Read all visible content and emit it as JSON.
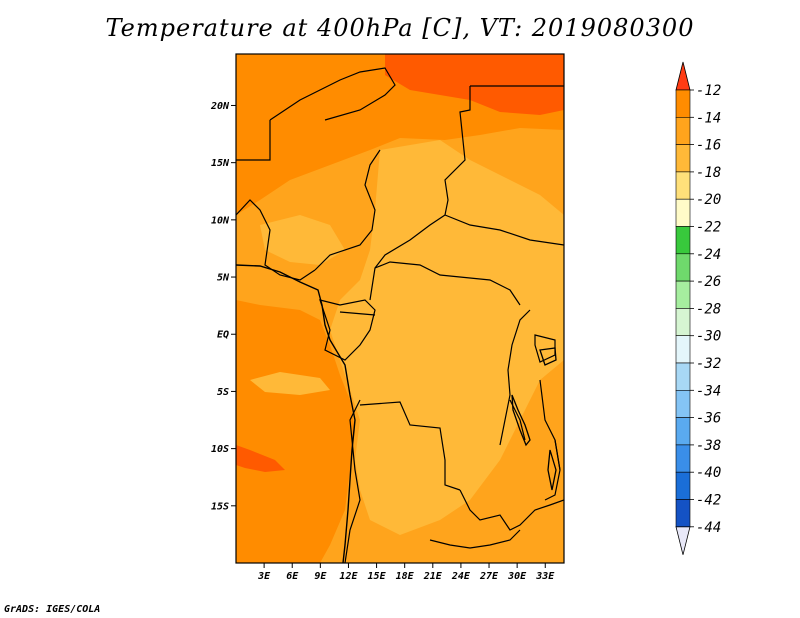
{
  "title": "Temperature at 400hPa [C], VT: 2019080300",
  "credit": "GrADS: IGES/COLA",
  "map": {
    "lat_labels": [
      "20N",
      "15N",
      "10N",
      "5N",
      "EQ",
      "5S",
      "10S",
      "15S"
    ],
    "lon_labels": [
      "3E",
      "6E",
      "9E",
      "12E",
      "15E",
      "18E",
      "21E",
      "24E",
      "27E",
      "30E",
      "33E"
    ],
    "lat_range": [
      -20,
      24.5
    ],
    "lon_range": [
      0,
      35
    ]
  },
  "colorbar": {
    "labels": [
      "-12",
      "-14",
      "-16",
      "-18",
      "-20",
      "-22",
      "-24",
      "-26",
      "-28",
      "-30",
      "-32",
      "-34",
      "-36",
      "-38",
      "-40",
      "-42",
      "-44"
    ],
    "colors": [
      "#ff5a00",
      "#ff8c00",
      "#ffa41c",
      "#ffb938",
      "#ffe07a",
      "#fffbc8",
      "#38c93c",
      "#6fd96c",
      "#a6ee9f",
      "#d6f5d2",
      "#e4f6fb",
      "#a8d8f5",
      "#84c4f5",
      "#5aaaf0",
      "#3a8ee9",
      "#1a6ed8",
      "#1452c4",
      "#0c2c99",
      "#08106e"
    ],
    "top_color": "#ff3c14",
    "bottom_color": "#e8e8f8"
  },
  "fields": {
    "base_color": "#ffa41c",
    "warm_color": "#ff8c00",
    "hot_color": "#ff5a00",
    "light_color": "#ffb938"
  }
}
